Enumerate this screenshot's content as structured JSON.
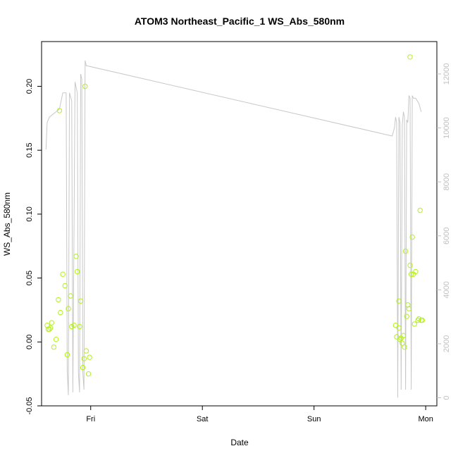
{
  "chart_data": {
    "type": "scatter",
    "title": "ATOM3 Northeast_Pacific_1 WS_Abs_580nm",
    "xlabel": "Date",
    "ylabel": "WS_Abs_580nm",
    "x_ticks": [
      "Fri",
      "Sat",
      "Sun",
      "Mon"
    ],
    "x_tick_values": [
      1.0,
      2.0,
      3.0,
      4.0
    ],
    "xlim": [
      0.56,
      4.1
    ],
    "ylim": [
      -0.05,
      0.235
    ],
    "y_ticks": [
      -0.05,
      0.0,
      0.05,
      0.1,
      0.15,
      0.2
    ],
    "y_tick_labels": [
      "-0.05",
      "0.00",
      "0.05",
      "0.10",
      "0.15",
      "0.20"
    ],
    "y2lim": [
      -300,
      13200
    ],
    "y2_ticks": [
      0,
      2000,
      4000,
      6000,
      8000,
      10000,
      12000
    ],
    "y2_tick_labels": [
      "0",
      "2000",
      "4000",
      "6000",
      "8000",
      "10000",
      "12000"
    ],
    "grid": false,
    "series": [
      {
        "role": "points",
        "axis": "left",
        "color": "#b4f01e",
        "x": [
          0.61,
          0.62,
          0.63,
          0.65,
          0.67,
          0.69,
          0.71,
          0.73,
          0.75,
          0.77,
          0.79,
          0.8,
          0.82,
          0.83,
          0.85,
          0.87,
          0.88,
          0.9,
          0.91,
          0.93,
          0.94,
          0.95,
          0.96,
          0.98,
          0.99,
          0.64,
          0.72,
          3.73,
          3.74,
          3.76,
          3.76,
          3.77,
          3.78,
          3.79,
          3.8,
          3.81,
          3.82,
          3.83,
          3.84,
          3.85,
          3.86,
          3.86,
          3.87,
          3.88,
          3.89,
          3.9,
          3.91,
          3.93,
          3.94,
          3.95,
          3.96,
          3.97
        ],
        "y": [
          0.013,
          0.01,
          0.01,
          0.015,
          -0.004,
          0.002,
          0.033,
          0.023,
          0.053,
          0.044,
          -0.01,
          0.026,
          0.036,
          0.012,
          0.013,
          0.067,
          0.055,
          0.012,
          0.032,
          -0.02,
          -0.013,
          0.2,
          -0.007,
          -0.025,
          -0.012,
          0.011,
          0.181,
          0.013,
          0.004,
          0.032,
          0.011,
          0.002,
          0.003,
          -0.001,
          0.005,
          -0.004,
          0.071,
          0.02,
          0.029,
          0.026,
          0.06,
          0.223,
          0.053,
          0.082,
          0.053,
          0.014,
          0.055,
          0.017,
          0.018,
          0.103,
          0.017,
          0.017
        ]
      },
      {
        "role": "line",
        "axis": "right",
        "color": "#c8c8c8",
        "x": [
          0.6,
          0.61,
          0.63,
          0.66,
          0.69,
          0.72,
          0.75,
          0.78,
          0.79,
          0.8,
          0.81,
          0.83,
          0.84,
          0.86,
          0.87,
          0.88,
          0.89,
          0.9,
          0.91,
          0.92,
          0.93,
          0.94,
          0.95,
          0.96,
          0.97,
          3.7,
          3.72,
          3.73,
          3.74,
          3.75,
          3.76,
          3.77,
          3.78,
          3.79,
          3.8,
          3.81,
          3.82,
          3.83,
          3.84,
          3.85,
          3.86,
          3.87,
          3.88,
          3.89,
          3.91,
          3.94,
          3.96
        ],
        "y": [
          9200,
          10200,
          10400,
          10500,
          10600,
          10700,
          11300,
          11300,
          1000,
          100,
          11300,
          11000,
          200,
          11700,
          11500,
          11300,
          900,
          200,
          12000,
          11800,
          900,
          300,
          12500,
          12300,
          12300,
          9700,
          10000,
          10400,
          10200,
          0,
          10400,
          10200,
          300,
          10100,
          10600,
          10400,
          300,
          10300,
          10200,
          11200,
          11100,
          300,
          11200,
          11100,
          11100,
          10900,
          10600
        ]
      }
    ]
  }
}
